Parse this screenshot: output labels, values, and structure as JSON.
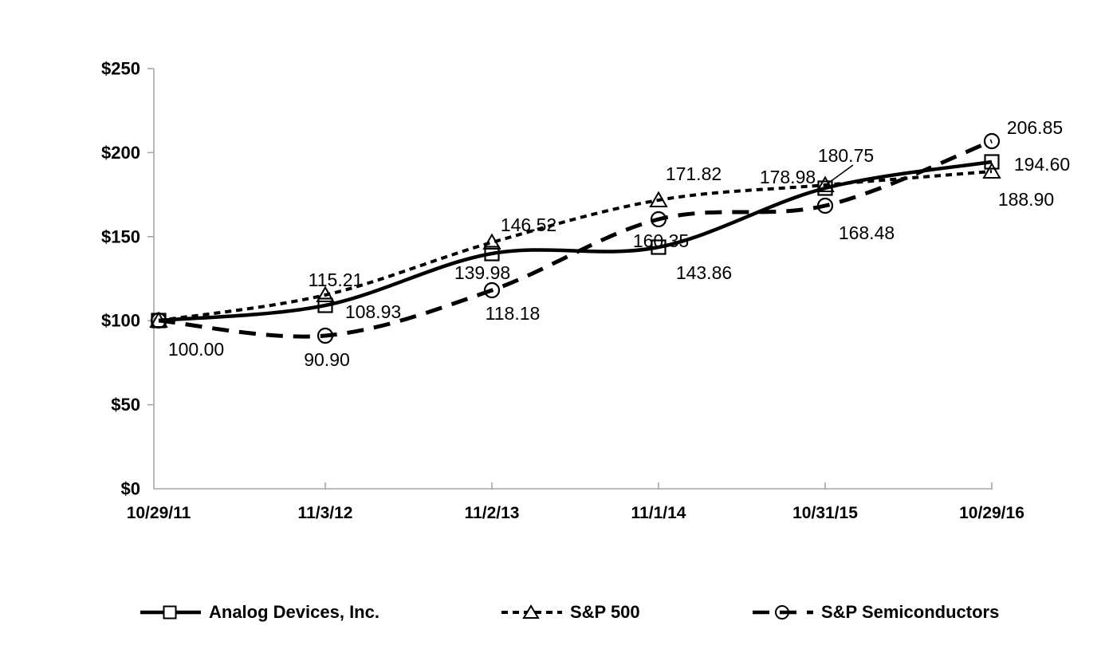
{
  "chart_data": {
    "type": "line",
    "title": "",
    "xlabel": "",
    "ylabel": "",
    "categories": [
      "10/29/11",
      "11/3/12",
      "11/2/13",
      "11/1/14",
      "10/31/15",
      "10/29/16"
    ],
    "y_axis": {
      "tick_labels": [
        "$0",
        "$50",
        "$100",
        "$150",
        "$200",
        "$250"
      ],
      "min": 0,
      "max": 250,
      "step": 50,
      "prefix": "$"
    },
    "ylim": [
      0,
      250
    ],
    "grid": false,
    "legend_position": "bottom",
    "colors": {
      "line": "#000000",
      "axis": "#A6A6A6",
      "text": "#000000",
      "marker_fill": "none"
    },
    "series": [
      {
        "name": "Analog Devices, Inc.",
        "line_style": "solid",
        "marker": "square",
        "values": [
          100.0,
          108.93,
          139.98,
          143.86,
          178.98,
          194.6
        ],
        "point_labels": [
          "100.00",
          "108.93",
          "139.98",
          "143.86",
          "178.98",
          "194.60"
        ],
        "label_offsets": [
          [
            47,
            36
          ],
          [
            60,
            8
          ],
          [
            -12,
            24
          ],
          [
            57,
            32
          ],
          [
            -47,
            -14
          ],
          [
            63,
            3
          ]
        ]
      },
      {
        "name": "S&P 500",
        "line_style": "dotted",
        "marker": "triangle",
        "values": [
          100.0,
          115.21,
          146.52,
          171.82,
          180.75,
          188.9
        ],
        "point_labels": [
          null,
          "115.21",
          "146.52",
          "171.82",
          "180.75",
          "188.90"
        ],
        "label_offsets": [
          null,
          [
            13,
            -19
          ],
          [
            46,
            -22
          ],
          [
            44,
            -33
          ],
          [
            26,
            -37
          ],
          [
            43,
            35
          ]
        ]
      },
      {
        "name": "S&P Semiconductors",
        "line_style": "long-dash",
        "marker": "circle",
        "values": [
          100.0,
          90.9,
          118.18,
          160.35,
          168.48,
          206.85
        ],
        "point_labels": [
          null,
          "90.90",
          "118.18",
          "160.35",
          "168.48",
          "206.85"
        ],
        "label_offsets": [
          null,
          [
            2,
            30
          ],
          [
            26,
            29
          ],
          [
            3,
            27
          ],
          [
            52,
            34
          ],
          [
            54,
            -17
          ]
        ]
      }
    ],
    "annotation": {
      "text": "180.75",
      "leader_from": [
        1070,
        207
      ],
      "leader_to": [
        1037,
        231
      ]
    }
  },
  "legend": {
    "items": [
      {
        "label": "Analog Devices, Inc."
      },
      {
        "label": "S&P 500"
      },
      {
        "label": "S&P Semiconductors"
      }
    ]
  }
}
